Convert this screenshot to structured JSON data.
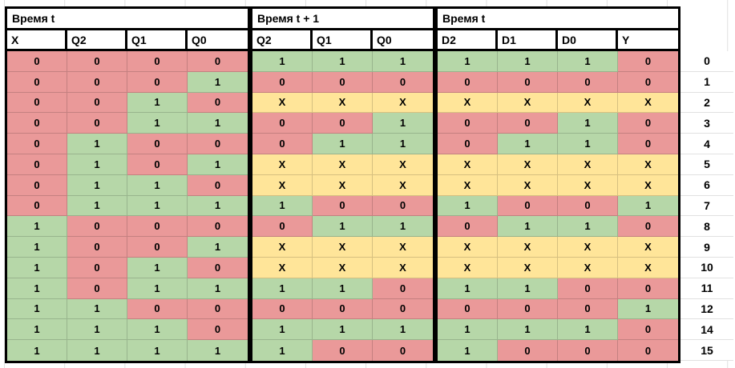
{
  "palette": {
    "value_0": "#ea9999",
    "value_1": "#b6d7a8",
    "value_x": "#ffe599",
    "grid_line": "#e1e1e1",
    "border": "#000000",
    "header_bg": "#ffffff",
    "text": "#000000"
  },
  "sections": [
    {
      "title": "Время t",
      "columns": [
        "X",
        "Q2",
        "Q1",
        "Q0"
      ]
    },
    {
      "title": "Время t + 1",
      "columns": [
        "Q2",
        "Q1",
        "Q0"
      ]
    },
    {
      "title": "Время t",
      "columns": [
        "D2",
        "D1",
        "D0",
        "Y"
      ]
    }
  ],
  "rows": [
    {
      "label": "0",
      "cells": [
        [
          "0",
          "0",
          "0",
          "0"
        ],
        [
          "1",
          "1",
          "1"
        ],
        [
          "1",
          "1",
          "1",
          "0"
        ]
      ]
    },
    {
      "label": "1",
      "cells": [
        [
          "0",
          "0",
          "0",
          "1"
        ],
        [
          "0",
          "0",
          "0"
        ],
        [
          "0",
          "0",
          "0",
          "0"
        ]
      ]
    },
    {
      "label": "2",
      "cells": [
        [
          "0",
          "0",
          "1",
          "0"
        ],
        [
          "X",
          "X",
          "X"
        ],
        [
          "X",
          "X",
          "X",
          "X"
        ]
      ]
    },
    {
      "label": "3",
      "cells": [
        [
          "0",
          "0",
          "1",
          "1"
        ],
        [
          "0",
          "0",
          "1"
        ],
        [
          "0",
          "0",
          "1",
          "0"
        ]
      ]
    },
    {
      "label": "4",
      "cells": [
        [
          "0",
          "1",
          "0",
          "0"
        ],
        [
          "0",
          "1",
          "1"
        ],
        [
          "0",
          "1",
          "1",
          "0"
        ]
      ]
    },
    {
      "label": "5",
      "cells": [
        [
          "0",
          "1",
          "0",
          "1"
        ],
        [
          "X",
          "X",
          "X"
        ],
        [
          "X",
          "X",
          "X",
          "X"
        ]
      ]
    },
    {
      "label": "6",
      "cells": [
        [
          "0",
          "1",
          "1",
          "0"
        ],
        [
          "X",
          "X",
          "X"
        ],
        [
          "X",
          "X",
          "X",
          "X"
        ]
      ]
    },
    {
      "label": "7",
      "cells": [
        [
          "0",
          "1",
          "1",
          "1"
        ],
        [
          "1",
          "0",
          "0"
        ],
        [
          "1",
          "0",
          "0",
          "1"
        ]
      ]
    },
    {
      "label": "8",
      "cells": [
        [
          "1",
          "0",
          "0",
          "0"
        ],
        [
          "0",
          "1",
          "1"
        ],
        [
          "0",
          "1",
          "1",
          "0"
        ]
      ]
    },
    {
      "label": "9",
      "cells": [
        [
          "1",
          "0",
          "0",
          "1"
        ],
        [
          "X",
          "X",
          "X"
        ],
        [
          "X",
          "X",
          "X",
          "X"
        ]
      ]
    },
    {
      "label": "10",
      "cells": [
        [
          "1",
          "0",
          "1",
          "0"
        ],
        [
          "X",
          "X",
          "X"
        ],
        [
          "X",
          "X",
          "X",
          "X"
        ]
      ]
    },
    {
      "label": "11",
      "cells": [
        [
          "1",
          "0",
          "1",
          "1"
        ],
        [
          "1",
          "1",
          "0"
        ],
        [
          "1",
          "1",
          "0",
          "0"
        ]
      ]
    },
    {
      "label": "12",
      "cells": [
        [
          "1",
          "1",
          "0",
          "0"
        ],
        [
          "0",
          "0",
          "0"
        ],
        [
          "0",
          "0",
          "0",
          "1"
        ]
      ]
    },
    {
      "label": "14",
      "cells": [
        [
          "1",
          "1",
          "1",
          "0"
        ],
        [
          "1",
          "1",
          "1"
        ],
        [
          "1",
          "1",
          "1",
          "0"
        ]
      ]
    },
    {
      "label": "15",
      "cells": [
        [
          "1",
          "1",
          "1",
          "1"
        ],
        [
          "1",
          "0",
          "0"
        ],
        [
          "1",
          "0",
          "0",
          "0"
        ]
      ]
    }
  ]
}
